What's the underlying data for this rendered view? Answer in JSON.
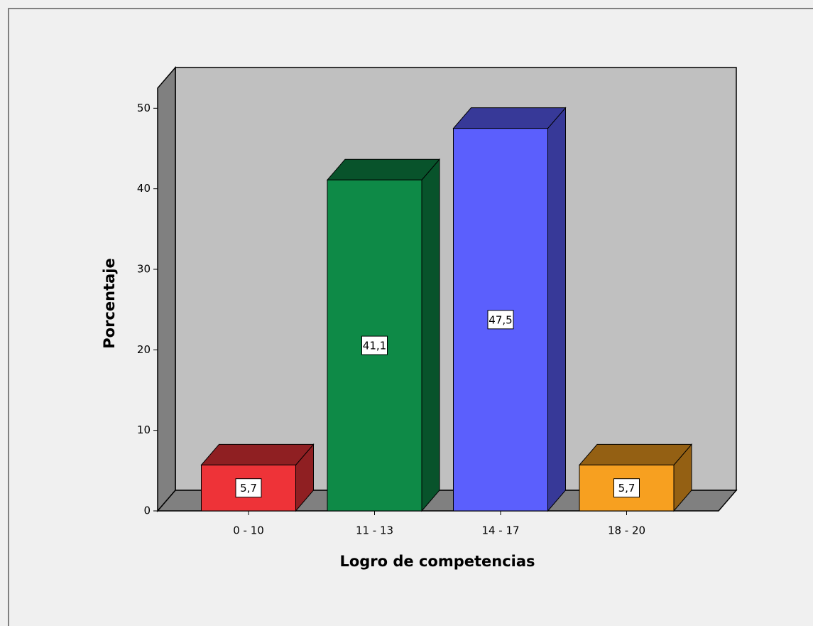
{
  "chart_data": {
    "type": "bar3d",
    "x_label": "Logro de competencias",
    "y_label": "Porcentaje",
    "categories": [
      "0 - 10",
      "11 - 13",
      "14 - 17",
      "18 - 20"
    ],
    "values": [
      5.7,
      41.1,
      47.5,
      5.7
    ],
    "value_labels": [
      "5,7",
      "41,1",
      "47,5",
      "5,7"
    ],
    "colors": [
      "#ee3338",
      "#0e8a47",
      "#5b5ffd",
      "#f7a020"
    ],
    "ylim": [
      0,
      52.5
    ],
    "yticks": [
      0,
      10,
      20,
      30,
      40,
      50
    ],
    "grid": false
  }
}
